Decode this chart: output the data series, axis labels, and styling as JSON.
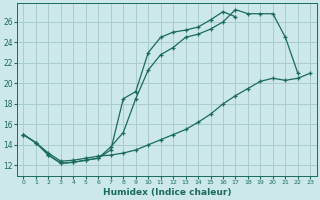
{
  "bg_color": "#cce8e8",
  "grid_color": "#aacccc",
  "line_color": "#1a6b5a",
  "xlabel": "Humidex (Indice chaleur)",
  "xlim": [
    -0.5,
    23.5
  ],
  "ylim": [
    11.0,
    27.8
  ],
  "yticks": [
    12,
    14,
    16,
    18,
    20,
    22,
    24,
    26
  ],
  "xticks": [
    0,
    1,
    2,
    3,
    4,
    5,
    6,
    7,
    8,
    9,
    10,
    11,
    12,
    13,
    14,
    15,
    16,
    17,
    18,
    19,
    20,
    21,
    22,
    23
  ],
  "line1_x": [
    0,
    1,
    2,
    3,
    4,
    5,
    6,
    7,
    8,
    9,
    10,
    11,
    12,
    13,
    14,
    15,
    16,
    17,
    18,
    19,
    20,
    21,
    22
  ],
  "line1_y": [
    15.0,
    14.2,
    13.0,
    12.2,
    12.3,
    12.5,
    12.7,
    13.8,
    15.2,
    18.5,
    21.3,
    22.8,
    23.5,
    24.5,
    24.8,
    25.3,
    26.0,
    27.2,
    26.8,
    26.8,
    26.8,
    24.5,
    21.0
  ],
  "line2_x": [
    0,
    1,
    2,
    3,
    4,
    5,
    6,
    7,
    8,
    9,
    10,
    11,
    12,
    13,
    14,
    15,
    16,
    17
  ],
  "line2_y": [
    15.0,
    14.2,
    13.0,
    12.2,
    12.3,
    12.5,
    12.7,
    13.5,
    18.5,
    19.2,
    23.0,
    24.5,
    25.0,
    25.2,
    25.5,
    26.2,
    27.0,
    26.5
  ],
  "line3_x": [
    0,
    1,
    2,
    3,
    4,
    5,
    6,
    7,
    8,
    9,
    10,
    11,
    12,
    13,
    14,
    15,
    16,
    17,
    18,
    19,
    20,
    21,
    22,
    23
  ],
  "line3_y": [
    15.0,
    14.2,
    13.2,
    12.4,
    12.5,
    12.7,
    12.9,
    13.0,
    13.2,
    13.5,
    14.0,
    14.5,
    15.0,
    15.5,
    16.2,
    17.0,
    18.0,
    18.8,
    19.5,
    20.2,
    20.5,
    20.3,
    20.5,
    21.0
  ]
}
